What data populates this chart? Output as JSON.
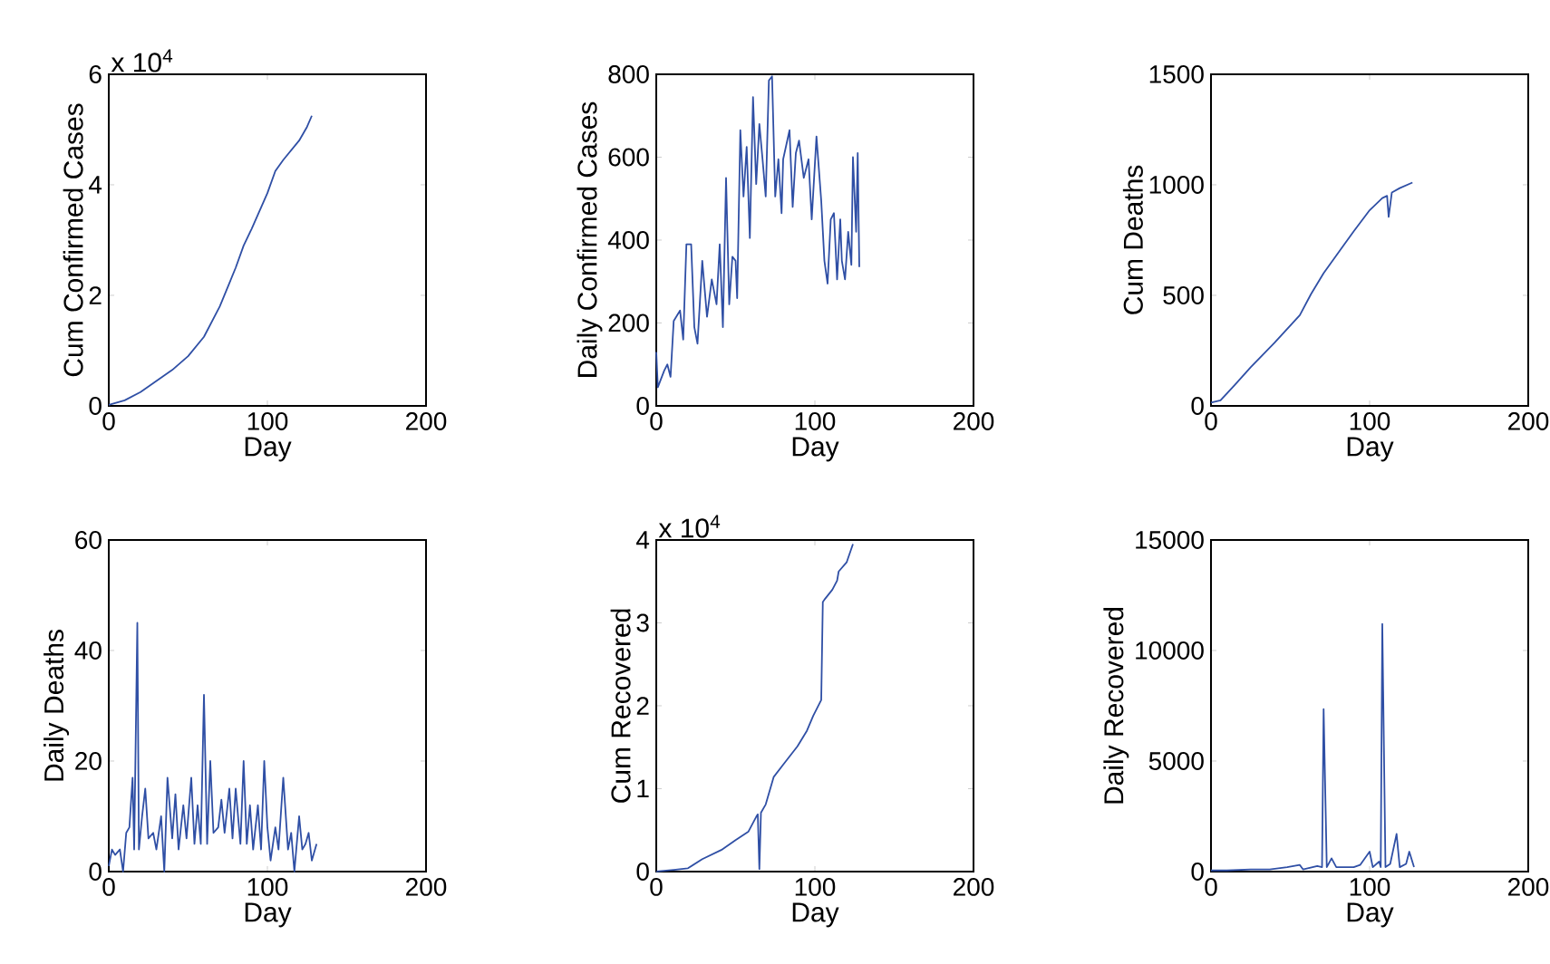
{
  "chart_data": [
    {
      "type": "line",
      "xlabel": "Day",
      "ylabel": "Cum Confirmed Cases",
      "xlim": [
        0,
        200
      ],
      "xticks": [
        0,
        100,
        200
      ],
      "ylim": [
        0,
        6
      ],
      "yticks": [
        0,
        2,
        4,
        6
      ],
      "annotations": [
        "x 10$^{4}$"
      ],
      "series": [
        {
          "color": "#2f4fa5",
          "x": [
            0,
            10,
            20,
            30,
            40,
            50,
            60,
            70,
            80,
            85,
            90,
            100,
            105,
            110,
            120,
            125,
            128
          ],
          "values": [
            0.02,
            0.1,
            0.25,
            0.45,
            0.65,
            0.9,
            1.25,
            1.8,
            2.5,
            2.9,
            3.2,
            3.85,
            4.25,
            4.45,
            4.8,
            5.05,
            5.25
          ]
        }
      ]
    },
    {
      "type": "line",
      "xlabel": "Day",
      "ylabel": "Daily Confirmed Cases",
      "xlim": [
        0,
        200
      ],
      "xticks": [
        0,
        100,
        200
      ],
      "ylim": [
        0,
        800
      ],
      "yticks": [
        0,
        200,
        400,
        600,
        800
      ],
      "series": [
        {
          "color": "#2f4fa5",
          "x": [
            0,
            1,
            5,
            7,
            9,
            11,
            15,
            17,
            19,
            22,
            24,
            26,
            29,
            32,
            35,
            38,
            40,
            42,
            44,
            46,
            48,
            50,
            51,
            53,
            55,
            57,
            59,
            61,
            63,
            65,
            67,
            69,
            71,
            73,
            75,
            77,
            79,
            80,
            84,
            86,
            88,
            90,
            93,
            96,
            98,
            101,
            104,
            106,
            108,
            110,
            112,
            114,
            116,
            117,
            119,
            121,
            123,
            124,
            126,
            127,
            128
          ],
          "values": [
            130,
            45,
            85,
            100,
            70,
            205,
            230,
            160,
            390,
            390,
            190,
            150,
            350,
            215,
            305,
            245,
            390,
            190,
            550,
            245,
            360,
            350,
            260,
            665,
            505,
            625,
            405,
            745,
            535,
            680,
            595,
            505,
            785,
            795,
            505,
            595,
            465,
            595,
            665,
            480,
            610,
            640,
            550,
            595,
            450,
            650,
            495,
            350,
            295,
            450,
            465,
            305,
            450,
            350,
            305,
            420,
            340,
            600,
            420,
            610,
            335
          ]
        }
      ]
    },
    {
      "type": "line",
      "xlabel": "Day",
      "ylabel": "Cum Deaths",
      "xlim": [
        0,
        200
      ],
      "xticks": [
        0,
        100,
        200
      ],
      "ylim": [
        0,
        1500
      ],
      "yticks": [
        0,
        500,
        1000,
        1500
      ],
      "series": [
        {
          "color": "#2f4fa5",
          "x": [
            0,
            6,
            15,
            25,
            40,
            56,
            63,
            71,
            83,
            90,
            100,
            108,
            111,
            112,
            114,
            119,
            127
          ],
          "values": [
            15,
            25,
            95,
            175,
            285,
            410,
            505,
            600,
            720,
            790,
            885,
            940,
            950,
            855,
            965,
            985,
            1010
          ]
        }
      ]
    },
    {
      "type": "line",
      "xlabel": "Day",
      "ylabel": "Daily Deaths",
      "xlim": [
        0,
        200
      ],
      "xticks": [
        0,
        100,
        200
      ],
      "ylim": [
        0,
        60
      ],
      "yticks": [
        0,
        20,
        40,
        60
      ],
      "series": [
        {
          "color": "#2f4fa5",
          "x": [
            0,
            2,
            4,
            7,
            9,
            11,
            13,
            15,
            16,
            18,
            19,
            21,
            23,
            25,
            28,
            30,
            33,
            35,
            37,
            40,
            42,
            44,
            47,
            49,
            52,
            54,
            56,
            58,
            60,
            62,
            64,
            66,
            69,
            71,
            73,
            76,
            78,
            80,
            83,
            85,
            87,
            89,
            91,
            94,
            96,
            98,
            100,
            102,
            105,
            107,
            110,
            113,
            115,
            117,
            120,
            122,
            124,
            126,
            128,
            131
          ],
          "values": [
            1,
            4,
            3,
            4,
            0,
            7,
            8,
            17,
            4,
            45,
            4,
            10,
            15,
            6,
            7,
            4,
            10,
            0,
            17,
            6,
            14,
            4,
            12,
            6,
            17,
            5,
            12,
            5,
            32,
            5,
            20,
            7,
            8,
            13,
            7,
            15,
            6,
            15,
            5,
            20,
            5,
            12,
            4,
            12,
            4,
            20,
            8,
            2,
            8,
            4,
            17,
            4,
            7,
            0,
            10,
            4,
            5,
            7,
            2,
            5
          ]
        }
      ]
    },
    {
      "type": "line",
      "xlabel": "Day",
      "ylabel": "Cum Recovered",
      "xlim": [
        0,
        200
      ],
      "xticks": [
        0,
        100,
        200
      ],
      "ylim": [
        0,
        4
      ],
      "yticks": [
        0,
        1,
        2,
        3,
        4
      ],
      "annotations": [
        "x 10$^{4}$"
      ],
      "series": [
        {
          "color": "#2f4fa5",
          "x": [
            0,
            11,
            20,
            29,
            41,
            50,
            58,
            63,
            64,
            65,
            66,
            69,
            74,
            80,
            89,
            95,
            99,
            104,
            105,
            106,
            111,
            114,
            115,
            120,
            124
          ],
          "values": [
            0,
            0.02,
            0.04,
            0.15,
            0.26,
            0.38,
            0.48,
            0.66,
            0.69,
            0.03,
            0.71,
            0.81,
            1.14,
            1.29,
            1.51,
            1.7,
            1.88,
            2.07,
            3.25,
            3.28,
            3.4,
            3.51,
            3.62,
            3.73,
            3.95
          ]
        }
      ]
    },
    {
      "type": "line",
      "xlabel": "Day",
      "ylabel": "Daily Recovered",
      "xlim": [
        0,
        200
      ],
      "xticks": [
        0,
        100,
        200
      ],
      "ylim": [
        0,
        15000
      ],
      "yticks": [
        0,
        5000,
        10000,
        15000
      ],
      "series": [
        {
          "color": "#2f4fa5",
          "x": [
            0,
            10,
            25,
            37,
            48,
            56,
            58,
            67,
            70,
            71,
            73,
            76,
            79,
            90,
            94,
            100,
            102,
            106,
            107,
            108,
            110,
            113,
            117,
            119,
            123,
            125,
            128
          ],
          "values": [
            50,
            50,
            100,
            100,
            200,
            300,
            100,
            250,
            200,
            7350,
            200,
            600,
            200,
            200,
            300,
            900,
            200,
            450,
            200,
            11200,
            200,
            350,
            1700,
            200,
            350,
            900,
            200
          ]
        }
      ]
    }
  ]
}
